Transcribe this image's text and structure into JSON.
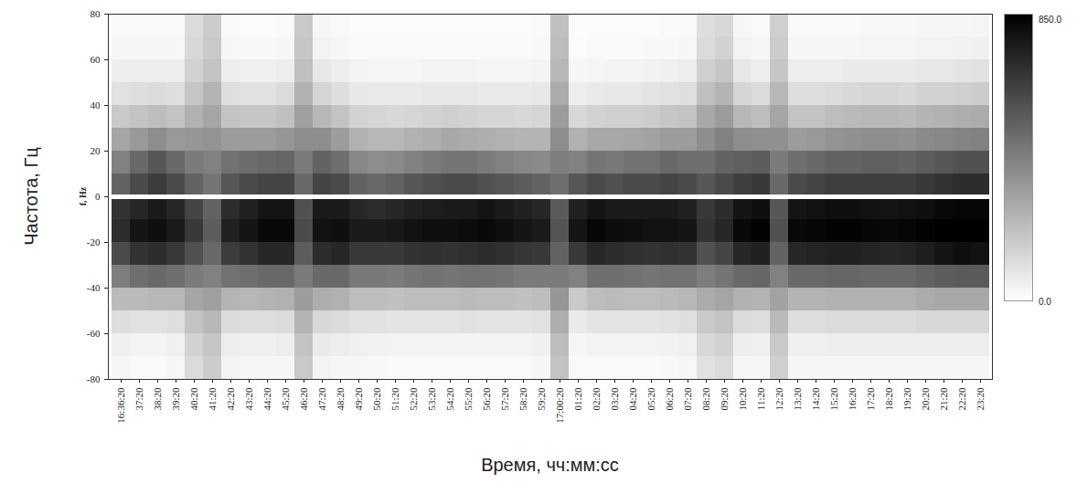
{
  "chart_data": {
    "type": "heatmap",
    "x_label": "Время, чч:мм:сс",
    "y_label": "Частота, Гц",
    "annotations": [
      "f, Hz"
    ],
    "x": [
      "16:36:20",
      "37:20",
      "38:20",
      "39:20",
      "40:20",
      "41:20",
      "42:20",
      "43:20",
      "44:20",
      "45:20",
      "46:20",
      "47:20",
      "48:20",
      "49:20",
      "50:20",
      "51:20",
      "52:20",
      "53:20",
      "54:20",
      "55:20",
      "56:20",
      "57:20",
      "58:20",
      "59:20",
      "17:00:20",
      "01:20",
      "02:20",
      "03:20",
      "04:20",
      "05:20",
      "06:20",
      "07:20",
      "08:20",
      "09:20",
      "10:20",
      "11:20",
      "12:20",
      "13:20",
      "14:20",
      "15:20",
      "16:20",
      "17:20",
      "18:20",
      "19:20",
      "20:20",
      "21:20",
      "22:20",
      "23:20"
    ],
    "y_bin_edges": [
      -80,
      -70,
      -60,
      -50,
      -40,
      -30,
      -20,
      -10,
      0,
      10,
      20,
      30,
      40,
      50,
      60,
      70,
      80
    ],
    "ylim": [
      -80,
      80
    ],
    "yticks": [
      -80,
      -60,
      -40,
      -20,
      0,
      20,
      40,
      60,
      80
    ],
    "hline": 0,
    "color_range": [
      0,
      850
    ],
    "color_ticks": [
      {
        "value": 0,
        "label": "0.0"
      },
      {
        "value": 850,
        "label": "850.0"
      }
    ],
    "cells": [
      [
        30,
        50,
        110,
        230,
        430,
        600,
        700,
        680,
        520,
        420,
        300,
        180,
        100,
        60,
        30,
        20
      ],
      [
        20,
        40,
        100,
        230,
        480,
        680,
        780,
        720,
        600,
        500,
        340,
        200,
        110,
        60,
        30,
        20
      ],
      [
        20,
        40,
        100,
        240,
        500,
        700,
        800,
        760,
        650,
        560,
        380,
        220,
        120,
        60,
        30,
        20
      ],
      [
        30,
        50,
        110,
        240,
        480,
        660,
        760,
        720,
        600,
        500,
        340,
        200,
        110,
        60,
        30,
        20
      ],
      [
        120,
        150,
        200,
        300,
        440,
        580,
        660,
        620,
        520,
        440,
        350,
        260,
        190,
        150,
        130,
        120
      ],
      [
        170,
        190,
        240,
        320,
        420,
        500,
        540,
        520,
        460,
        420,
        360,
        300,
        250,
        200,
        180,
        170
      ],
      [
        40,
        60,
        120,
        250,
        470,
        650,
        740,
        700,
        560,
        470,
        330,
        200,
        110,
        60,
        30,
        20
      ],
      [
        30,
        50,
        110,
        240,
        480,
        680,
        780,
        740,
        600,
        490,
        330,
        190,
        100,
        50,
        25,
        15
      ],
      [
        30,
        50,
        110,
        250,
        500,
        720,
        820,
        780,
        620,
        500,
        330,
        190,
        100,
        50,
        25,
        15
      ],
      [
        30,
        60,
        120,
        260,
        500,
        720,
        820,
        780,
        620,
        510,
        350,
        210,
        120,
        60,
        30,
        20
      ],
      [
        180,
        200,
        250,
        330,
        440,
        540,
        600,
        580,
        500,
        440,
        380,
        320,
        260,
        210,
        190,
        180
      ],
      [
        40,
        70,
        130,
        270,
        500,
        700,
        790,
        760,
        620,
        520,
        380,
        240,
        140,
        80,
        40,
        30
      ],
      [
        30,
        60,
        120,
        260,
        500,
        720,
        800,
        760,
        600,
        480,
        330,
        200,
        110,
        60,
        30,
        20
      ],
      [
        30,
        50,
        100,
        220,
        450,
        660,
        760,
        720,
        520,
        400,
        260,
        150,
        80,
        40,
        20,
        15
      ],
      [
        25,
        45,
        100,
        220,
        450,
        660,
        760,
        700,
        500,
        380,
        240,
        140,
        70,
        35,
        20,
        15
      ],
      [
        20,
        40,
        90,
        210,
        440,
        660,
        770,
        720,
        520,
        390,
        240,
        130,
        70,
        35,
        20,
        15
      ],
      [
        20,
        40,
        90,
        220,
        460,
        680,
        790,
        740,
        560,
        420,
        260,
        140,
        70,
        35,
        20,
        15
      ],
      [
        20,
        40,
        90,
        220,
        470,
        690,
        800,
        750,
        580,
        440,
        270,
        150,
        80,
        40,
        20,
        15
      ],
      [
        20,
        40,
        90,
        220,
        460,
        680,
        800,
        760,
        600,
        460,
        290,
        160,
        80,
        40,
        20,
        15
      ],
      [
        20,
        40,
        100,
        230,
        470,
        690,
        810,
        760,
        600,
        460,
        280,
        150,
        80,
        40,
        20,
        15
      ],
      [
        20,
        40,
        90,
        220,
        470,
        700,
        820,
        780,
        580,
        440,
        270,
        140,
        70,
        35,
        20,
        15
      ],
      [
        20,
        40,
        90,
        220,
        460,
        690,
        800,
        760,
        560,
        420,
        260,
        140,
        70,
        35,
        20,
        15
      ],
      [
        20,
        40,
        90,
        210,
        440,
        670,
        780,
        740,
        540,
        400,
        250,
        130,
        70,
        35,
        20,
        15
      ],
      [
        30,
        50,
        100,
        220,
        440,
        660,
        760,
        720,
        520,
        390,
        250,
        140,
        80,
        40,
        25,
        20
      ],
      [
        200,
        220,
        270,
        350,
        440,
        520,
        570,
        550,
        480,
        430,
        380,
        330,
        280,
        240,
        220,
        210
      ],
      [
        20,
        30,
        70,
        180,
        420,
        660,
        780,
        740,
        560,
        420,
        260,
        130,
        60,
        30,
        15,
        10
      ],
      [
        20,
        40,
        90,
        220,
        480,
        720,
        830,
        780,
        600,
        460,
        290,
        150,
        70,
        35,
        20,
        15
      ],
      [
        20,
        40,
        90,
        230,
        480,
        700,
        810,
        760,
        580,
        450,
        290,
        160,
        80,
        40,
        20,
        15
      ],
      [
        20,
        40,
        90,
        220,
        470,
        690,
        800,
        760,
        600,
        470,
        300,
        160,
        80,
        40,
        20,
        15
      ],
      [
        20,
        40,
        90,
        220,
        460,
        680,
        790,
        760,
        600,
        470,
        310,
        170,
        90,
        45,
        25,
        15
      ],
      [
        25,
        45,
        100,
        230,
        470,
        690,
        790,
        760,
        620,
        500,
        330,
        190,
        100,
        50,
        25,
        20
      ],
      [
        30,
        50,
        110,
        240,
        470,
        680,
        780,
        740,
        600,
        480,
        330,
        200,
        110,
        60,
        30,
        20
      ],
      [
        100,
        130,
        180,
        280,
        430,
        580,
        680,
        660,
        560,
        480,
        380,
        290,
        210,
        160,
        120,
        110
      ],
      [
        120,
        150,
        200,
        300,
        460,
        620,
        720,
        700,
        600,
        520,
        420,
        330,
        250,
        190,
        150,
        130
      ],
      [
        30,
        60,
        120,
        260,
        500,
        720,
        820,
        780,
        640,
        530,
        380,
        240,
        140,
        80,
        40,
        30
      ],
      [
        30,
        50,
        110,
        250,
        510,
        740,
        840,
        800,
        660,
        540,
        370,
        220,
        120,
        60,
        30,
        20
      ],
      [
        160,
        180,
        230,
        310,
        420,
        520,
        580,
        560,
        500,
        440,
        370,
        300,
        240,
        190,
        170,
        160
      ],
      [
        30,
        50,
        110,
        250,
        500,
        720,
        820,
        780,
        600,
        480,
        330,
        200,
        110,
        60,
        30,
        20
      ],
      [
        30,
        50,
        110,
        250,
        500,
        730,
        830,
        790,
        620,
        500,
        340,
        200,
        110,
        60,
        30,
        20
      ],
      [
        30,
        60,
        120,
        260,
        510,
        740,
        840,
        800,
        640,
        520,
        360,
        220,
        120,
        60,
        30,
        20
      ],
      [
        30,
        60,
        120,
        260,
        510,
        740,
        840,
        800,
        640,
        520,
        370,
        230,
        130,
        70,
        30,
        20
      ],
      [
        30,
        60,
        120,
        260,
        500,
        730,
        830,
        790,
        640,
        530,
        380,
        240,
        140,
        70,
        35,
        25
      ],
      [
        30,
        60,
        120,
        260,
        500,
        720,
        820,
        780,
        640,
        530,
        380,
        240,
        140,
        70,
        35,
        25
      ],
      [
        30,
        60,
        120,
        260,
        500,
        730,
        830,
        790,
        640,
        520,
        370,
        230,
        130,
        70,
        35,
        25
      ],
      [
        30,
        60,
        130,
        280,
        520,
        750,
        840,
        800,
        660,
        540,
        390,
        250,
        150,
        80,
        40,
        30
      ],
      [
        30,
        60,
        130,
        290,
        540,
        780,
        850,
        820,
        680,
        560,
        400,
        260,
        150,
        80,
        40,
        30
      ],
      [
        30,
        60,
        130,
        290,
        550,
        800,
        850,
        830,
        700,
        580,
        410,
        270,
        160,
        90,
        45,
        30
      ],
      [
        30,
        60,
        130,
        290,
        550,
        790,
        850,
        830,
        700,
        580,
        420,
        280,
        170,
        100,
        50,
        35
      ]
    ]
  }
}
